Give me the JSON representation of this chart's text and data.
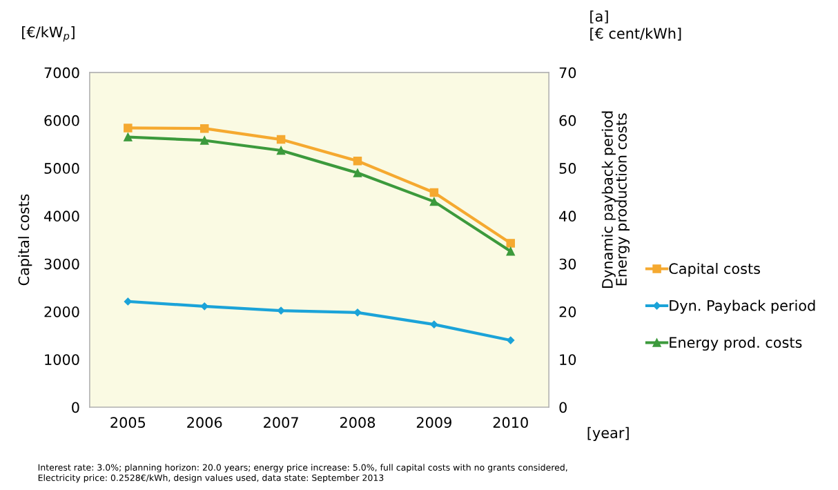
{
  "chart_data": {
    "type": "line",
    "categories": [
      "2005",
      "2006",
      "2007",
      "2008",
      "2009",
      "2010"
    ],
    "ylabel": "Capital costs",
    "y2label": "Dynamic payback period\nEnergy production costs",
    "series": [
      {
        "name": "Capital costs",
        "color": "#f5a930",
        "marker": "square",
        "values": [
          5840,
          5830,
          5600,
          5150,
          4490,
          3430
        ]
      },
      {
        "name": "Dyn. Payback period",
        "color": "#1ba3d8",
        "marker": "diamond",
        "axis": "y2",
        "values": [
          22.1,
          21.1,
          20.2,
          19.8,
          17.3,
          14.0
        ]
      },
      {
        "name": "Energy prod. costs",
        "color": "#3c9a3c",
        "marker": "triangle",
        "values": [
          5650,
          5580,
          5370,
          4900,
          4300,
          3260
        ]
      }
    ],
    "ylim": [
      0,
      7000
    ],
    "yticks": [
      0,
      1000,
      2000,
      3000,
      4000,
      5000,
      6000,
      7000
    ],
    "y2lim": [
      0,
      70
    ],
    "y2ticks": [
      0,
      10,
      20,
      30,
      40,
      50,
      60,
      70
    ],
    "grid": false,
    "legend": "right",
    "annotations": [
      "[€/kW$_{p}$]",
      "[a]\n[€ cent/kWh]",
      "[year]",
      "Interest rate: 3.0%; planning horizon: 20.0 years; energy price increase: 5.0%, full capital costs with no grants considered,\nElectricity price: 0.2528€/kWh, design values used, data state: September 2013"
    ]
  }
}
